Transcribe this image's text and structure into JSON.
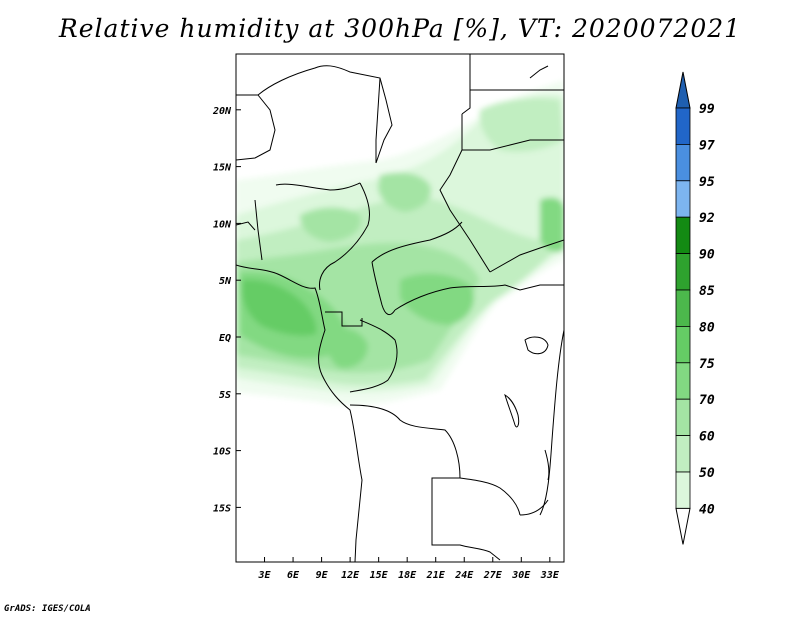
{
  "title": "Relative humidity at 300hPa [%], VT: 2020072021",
  "credit": "GrADS: IGES/COLA",
  "map": {
    "lon_range": [
      0,
      34.5
    ],
    "lat_range": [
      -20,
      25
    ],
    "x_ticks": [
      "3E",
      "6E",
      "9E",
      "12E",
      "15E",
      "18E",
      "21E",
      "24E",
      "27E",
      "30E",
      "33E"
    ],
    "y_ticks": [
      "20N",
      "15N",
      "10N",
      "5N",
      "EQ",
      "5S",
      "10S",
      "15S"
    ]
  },
  "colorbar": {
    "levels": [
      "99",
      "97",
      "95",
      "92",
      "90",
      "85",
      "80",
      "75",
      "70",
      "60",
      "50",
      "40"
    ],
    "colors": [
      "#2166c8",
      "#4a8fe0",
      "#7db5f0",
      "#138a13",
      "#2ea22e",
      "#4cb84c",
      "#65cc65",
      "#82d982",
      "#a4e4a4",
      "#c1eec1",
      "#dcf7dc",
      "#f0fcf0"
    ],
    "top_arrow_color": "#1f5fb0",
    "bottom_arrow_color": "#ffffff"
  }
}
